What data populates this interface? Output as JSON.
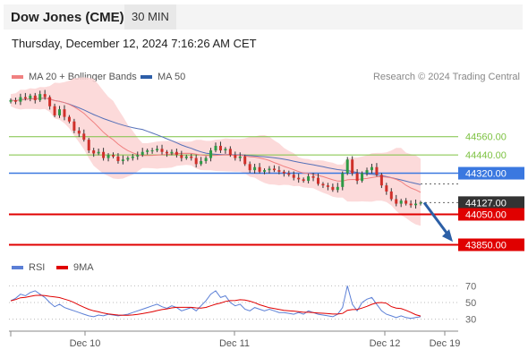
{
  "header": {
    "title": "Dow Jones (CME)",
    "interval": "30 MIN",
    "timestamp": "Thursday, December 12, 2024 7:16:26 AM CET"
  },
  "legend": {
    "items": [
      {
        "label": "MA 20 + Bollinger Bands",
        "color": "#f08080"
      },
      {
        "label": "MA 50",
        "color": "#2d5ea8"
      }
    ],
    "credit": "Research © 2024 Trading Central"
  },
  "rsi_legend": {
    "items": [
      {
        "label": "RSI",
        "color": "#5b7fd6"
      },
      {
        "label": "9MA",
        "color": "#e00000"
      }
    ]
  },
  "chart_data": {
    "type": "line",
    "series_kind": "candlestick",
    "ylim": [
      43800,
      44870
    ],
    "x_ticks": [
      "Dec 10",
      "Dec 11",
      "Dec 12",
      "Dec 19"
    ],
    "closes": [
      44800,
      44790,
      44820,
      44810,
      44830,
      44800,
      44840,
      44820,
      44760,
      44700,
      44740,
      44690,
      44660,
      44600,
      44580,
      44540,
      44470,
      44450,
      44460,
      44420,
      44440,
      44430,
      44400,
      44410,
      44420,
      44430,
      44440,
      44460,
      44470,
      44470,
      44480,
      44460,
      44450,
      44460,
      44440,
      44420,
      44430,
      44420,
      44380,
      44400,
      44420,
      44470,
      44500,
      44470,
      44480,
      44440,
      44420,
      44430,
      44380,
      44340,
      44360,
      44330,
      44340,
      44350,
      44340,
      44330,
      44320,
      44310,
      44290,
      44280,
      44270,
      44300,
      44290,
      44250,
      44240,
      44230,
      44210,
      44230,
      44320,
      44410,
      44320,
      44270,
      44320,
      44340,
      44360,
      44310,
      44240,
      44200,
      44150,
      44120,
      44140,
      44120,
      44110,
      44120,
      44127
    ],
    "price_levels": [
      {
        "value": 44560.0,
        "label": "44560.00",
        "kind": "resistance"
      },
      {
        "value": 44440.0,
        "label": "44440.00",
        "kind": "resistance"
      },
      {
        "value": 44320.0,
        "label": "44320.00",
        "kind": "pivot"
      },
      {
        "value": 44127.0,
        "label": "44127.00",
        "kind": "last"
      },
      {
        "value": 44050.0,
        "label": "44050.00",
        "kind": "support"
      },
      {
        "value": 43850.0,
        "label": "43850.00",
        "kind": "support"
      }
    ],
    "colors": {
      "resistance": "#7dc242",
      "pivot": "#3a78e0",
      "support": "#e00000",
      "last": "#333333",
      "up": "#2e9a45",
      "down": "#d0302a",
      "ma50": "#5570b8",
      "ma20": "#f08080",
      "band": "#fbd4d4",
      "arrow": "#2c5fa6"
    },
    "rsi": {
      "ylim": [
        20,
        80
      ],
      "ticks": [
        "70",
        "50",
        "30"
      ],
      "values": [
        52,
        55,
        60,
        58,
        62,
        64,
        60,
        56,
        50,
        45,
        48,
        44,
        42,
        40,
        38,
        36,
        34,
        33,
        35,
        34,
        36,
        35,
        34,
        35,
        36,
        38,
        40,
        42,
        44,
        46,
        48,
        45,
        43,
        46,
        44,
        40,
        42,
        44,
        40,
        46,
        52,
        60,
        64,
        56,
        58,
        50,
        46,
        48,
        42,
        40,
        44,
        42,
        40,
        42,
        40,
        38,
        38,
        37,
        36,
        38,
        36,
        40,
        38,
        36,
        35,
        34,
        33,
        36,
        44,
        70,
        48,
        40,
        50,
        54,
        56,
        48,
        40,
        36,
        34,
        32,
        34,
        32,
        31,
        32,
        33
      ]
    }
  }
}
